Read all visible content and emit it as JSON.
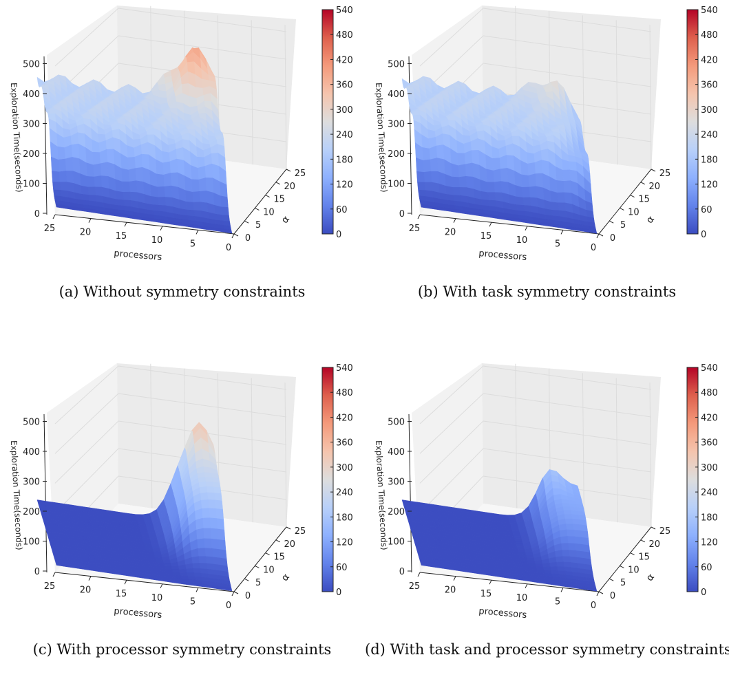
{
  "figure": {
    "panels": [
      {
        "caption": "(a) Without symmetry constraints"
      },
      {
        "caption": "(b) With task symmetry constraints"
      },
      {
        "caption": "(c) With processor symmetry constraints"
      },
      {
        "caption": "(d) With task and processor symmetry constraints"
      }
    ]
  },
  "chart_data": [
    {
      "type": "surface3d",
      "title": "",
      "xlabel": "processors",
      "ylabel": "α",
      "zlabel": "Exploration Time(seconds)",
      "xticks": [
        25,
        20,
        15,
        10,
        5,
        0
      ],
      "yticks": [
        0,
        5,
        10,
        15,
        20,
        25
      ],
      "zticks": [
        0,
        100,
        200,
        300,
        400,
        500
      ],
      "xlim": [
        0,
        25
      ],
      "ylim": [
        0,
        25
      ],
      "zlim": [
        0,
        540
      ],
      "colorbar": {
        "ticks": [
          0,
          60,
          120,
          180,
          240,
          300,
          360,
          420,
          480,
          540
        ],
        "colormap": "coolwarm"
      },
      "surface": {
        "plateau_from_alpha": 7,
        "plateau_height": 230,
        "peak_height": 390,
        "peak_at_processors": 2.5,
        "peak_at_alpha": 24
      }
    },
    {
      "type": "surface3d",
      "title": "",
      "xlabel": "processors",
      "ylabel": "α",
      "zlabel": "Exploration Time(seconds)",
      "xticks": [
        25,
        20,
        15,
        10,
        5,
        0
      ],
      "yticks": [
        0,
        5,
        10,
        15,
        20,
        25
      ],
      "zticks": [
        0,
        100,
        200,
        300,
        400,
        500
      ],
      "xlim": [
        0,
        25
      ],
      "ylim": [
        0,
        25
      ],
      "zlim": [
        0,
        540
      ],
      "colorbar": {
        "ticks": [
          0,
          60,
          120,
          180,
          240,
          300,
          360,
          420,
          480,
          540
        ],
        "colormap": "coolwarm"
      },
      "surface": {
        "plateau_from_alpha": 7,
        "plateau_height": 225,
        "peak_height": 300,
        "peak_at_processors": 3,
        "peak_at_alpha": 24
      }
    },
    {
      "type": "surface3d",
      "title": "",
      "xlabel": "processors",
      "ylabel": "α",
      "zlabel": "Exploration Time(seconds)",
      "xticks": [
        25,
        20,
        15,
        10,
        5,
        0
      ],
      "yticks": [
        0,
        5,
        10,
        15,
        20,
        25
      ],
      "zticks": [
        0,
        100,
        200,
        300,
        400,
        500
      ],
      "xlim": [
        0,
        25
      ],
      "ylim": [
        0,
        25
      ],
      "zlim": [
        0,
        540
      ],
      "colorbar": {
        "ticks": [
          0,
          60,
          120,
          180,
          240,
          300,
          360,
          420,
          480,
          540
        ],
        "colormap": "coolwarm"
      },
      "surface": {
        "flat_until_processors": 6,
        "ridge_height": 230,
        "peak_height": 340,
        "peak_at_processors": 2,
        "peak_at_alpha": 24
      }
    },
    {
      "type": "surface3d",
      "title": "",
      "xlabel": "processors",
      "ylabel": "α",
      "zlabel": "Exploration Time(seconds)",
      "xticks": [
        25,
        20,
        15,
        10,
        5,
        0
      ],
      "yticks": [
        0,
        5,
        10,
        15,
        20,
        25
      ],
      "zticks": [
        0,
        100,
        200,
        300,
        400,
        500
      ],
      "xlim": [
        0,
        25
      ],
      "ylim": [
        0,
        25
      ],
      "zlim": [
        0,
        540
      ],
      "colorbar": {
        "ticks": [
          0,
          60,
          120,
          180,
          240,
          300,
          360,
          420,
          480,
          540
        ],
        "colormap": "coolwarm"
      },
      "surface": {
        "flat_until_processors": 6,
        "ridge_height": 130,
        "peak_height": 190,
        "peak_at_processors": 4,
        "peak_at_alpha": 24
      }
    }
  ]
}
